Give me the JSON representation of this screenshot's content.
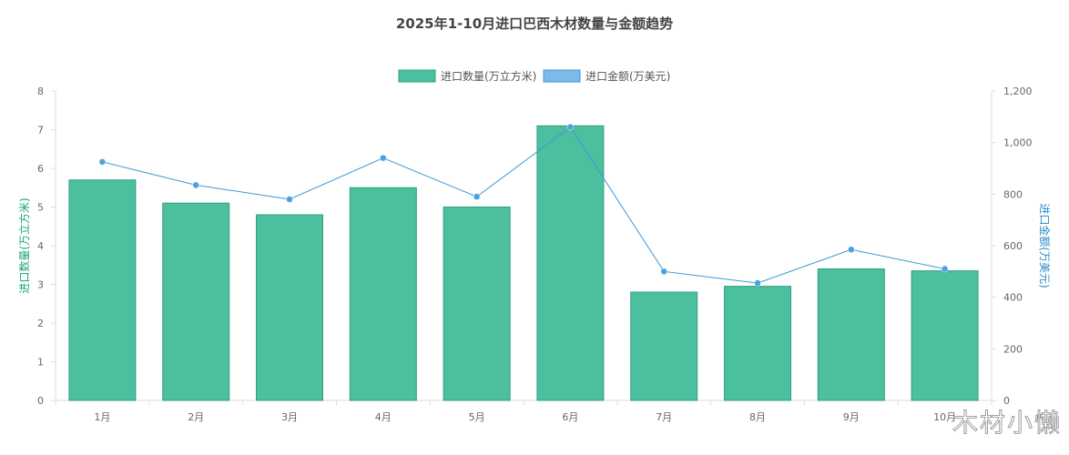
{
  "chart_data": {
    "type": "bar",
    "title": "2025年1-10月进口巴西木材数量与金额趋势",
    "categories": [
      "1月",
      "2月",
      "3月",
      "4月",
      "5月",
      "6月",
      "7月",
      "8月",
      "9月",
      "10月"
    ],
    "series": [
      {
        "name": "进口数量(万立方米)",
        "type": "bar",
        "axis": "left",
        "values": [
          5.7,
          5.1,
          4.8,
          5.5,
          5.0,
          7.1,
          2.8,
          2.95,
          3.4,
          3.35
        ]
      },
      {
        "name": "进口金额(万美元)",
        "type": "line",
        "axis": "right",
        "values": [
          925,
          835,
          780,
          940,
          790,
          1060,
          500,
          455,
          585,
          510
        ]
      }
    ],
    "y_left": {
      "label": "进口数量(万立方米)",
      "min": 0,
      "max": 8,
      "ticks": [
        "0",
        "1",
        "2",
        "3",
        "4",
        "5",
        "6",
        "7",
        "8"
      ]
    },
    "y_right": {
      "label": "进口金额(万美元)",
      "min": 0,
      "max": 1200,
      "ticks": [
        "0",
        "200",
        "400",
        "600",
        "800",
        "1,000",
        "1,200"
      ]
    },
    "legend_position": "top-center",
    "grid": false,
    "colors": {
      "bar_fill": "#4cbf9f",
      "bar_stroke": "#2fa07f",
      "line": "#3a99d8",
      "point": "#4aa3df",
      "legend_line_fill": "#7fb9e8"
    }
  },
  "watermark": "木材小懒"
}
